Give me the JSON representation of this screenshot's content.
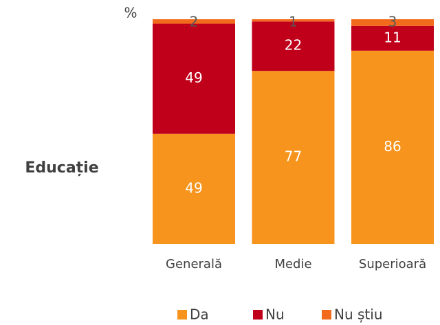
{
  "chart_data": {
    "type": "stacked_bar",
    "title": "Educație",
    "y_label": "%",
    "categories": [
      "Generală",
      "Medie",
      "Superioară"
    ],
    "series": [
      {
        "name": "Da",
        "color": "#f7941d",
        "values": [
          49,
          77,
          86
        ]
      },
      {
        "name": "Nu",
        "color": "#c0001a",
        "values": [
          49,
          22,
          11
        ]
      },
      {
        "name": "Nu știu",
        "color": "#f26a1b",
        "values": [
          2,
          1,
          3
        ]
      }
    ],
    "ylim": [
      0,
      100
    ],
    "legend": "bottom"
  }
}
